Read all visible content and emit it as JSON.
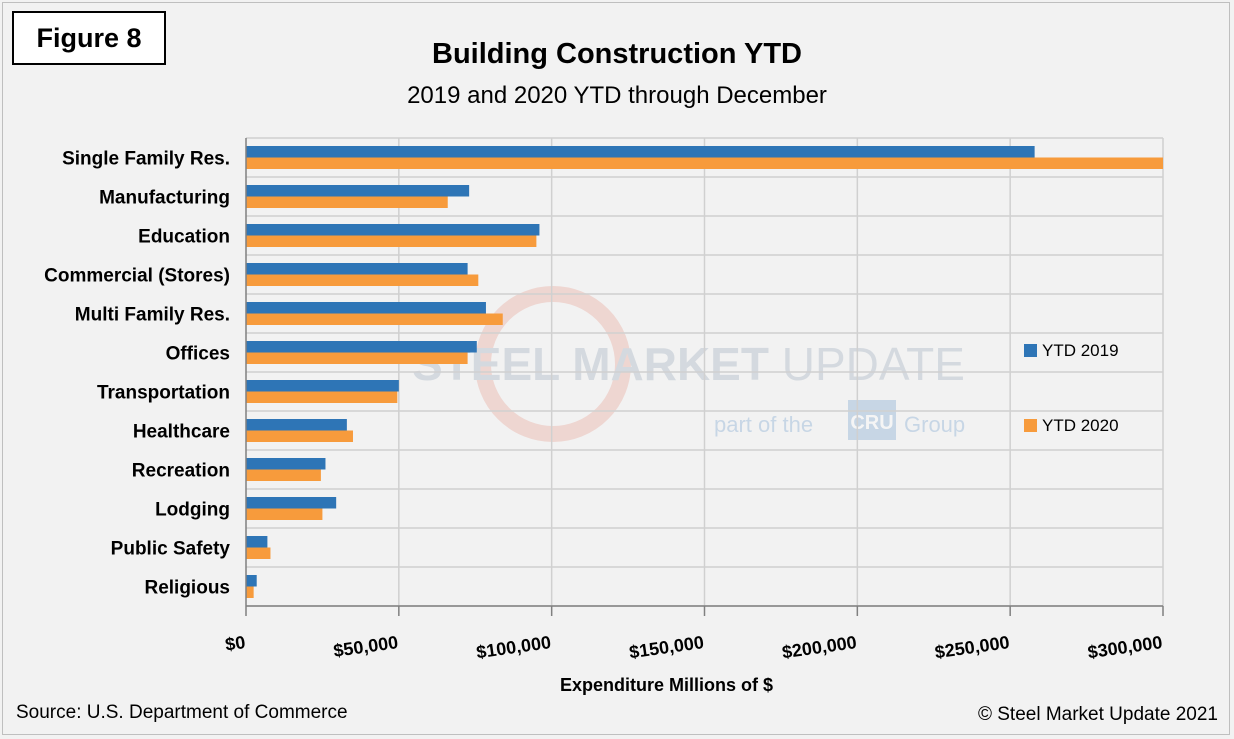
{
  "figure_label": "Figure 8",
  "source": "Source: U.S. Department of Commerce",
  "copyright": "© Steel Market Update 2021",
  "watermark": {
    "name_bold": "STEEL",
    "name_mid": " MARKET",
    "name_light": " UPDATE",
    "tagline_before": "part of the",
    "tagline_logo": "CRU",
    "tagline_after": "Group"
  },
  "colors": {
    "ytd_2019": "#2e75b6",
    "ytd_2020": "#f79b3c",
    "grid": "#d0d0d0"
  },
  "chart_data": {
    "type": "bar",
    "orientation": "horizontal",
    "title": "Building Construction YTD",
    "subtitle": "2019 and 2020 YTD through December",
    "xlabel": "Expenditure Millions of $",
    "ylabel": "",
    "xlim": [
      0,
      300000
    ],
    "xticks": [
      0,
      50000,
      100000,
      150000,
      200000,
      250000,
      300000
    ],
    "xtick_labels": [
      "$0",
      "$50,000",
      "$100,000",
      "$150,000",
      "$200,000",
      "$250,000",
      "$300,000"
    ],
    "grid": true,
    "legend_position": "right",
    "categories": [
      "Single Family Res.",
      "Manufacturing",
      "Education",
      "Commercial (Stores)",
      "Multi Family Res.",
      "Offices",
      "Transportation",
      "Healthcare",
      "Recreation",
      "Lodging",
      "Public Safety",
      "Religious"
    ],
    "series": [
      {
        "name": "YTD 2019",
        "values": [
          258000,
          73000,
          96000,
          72500,
          78500,
          75500,
          50000,
          33000,
          26000,
          29500,
          7000,
          3500
        ]
      },
      {
        "name": "YTD 2020",
        "values": [
          300000,
          66000,
          95000,
          76000,
          84000,
          72500,
          49500,
          35000,
          24500,
          25000,
          8000,
          2500
        ]
      }
    ]
  }
}
